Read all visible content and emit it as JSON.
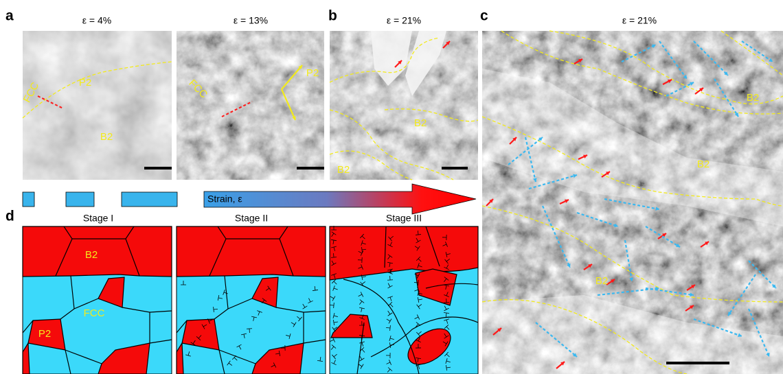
{
  "panel_a": {
    "letter": "a",
    "images": [
      {
        "strain": "ε = 4%",
        "labels": [
          "FCC",
          "P2",
          "B2"
        ]
      },
      {
        "strain": "ε = 13%",
        "labels": [
          "FCC",
          "P2"
        ]
      }
    ]
  },
  "panel_b": {
    "letter": "b",
    "strain": "ε = 21%",
    "labels": [
      "B2",
      "B2"
    ]
  },
  "panel_c": {
    "letter": "c",
    "strain": "ε = 21%",
    "labels": [
      "B2",
      "B2",
      "B2"
    ]
  },
  "panel_d": {
    "letter": "d",
    "arrow_label": "Strain, ε",
    "stages": [
      {
        "title": "Stage I",
        "labels": [
          "B2",
          "FCC",
          "P2"
        ]
      },
      {
        "title": "Stage II"
      },
      {
        "title": "Stage III"
      }
    ]
  }
}
